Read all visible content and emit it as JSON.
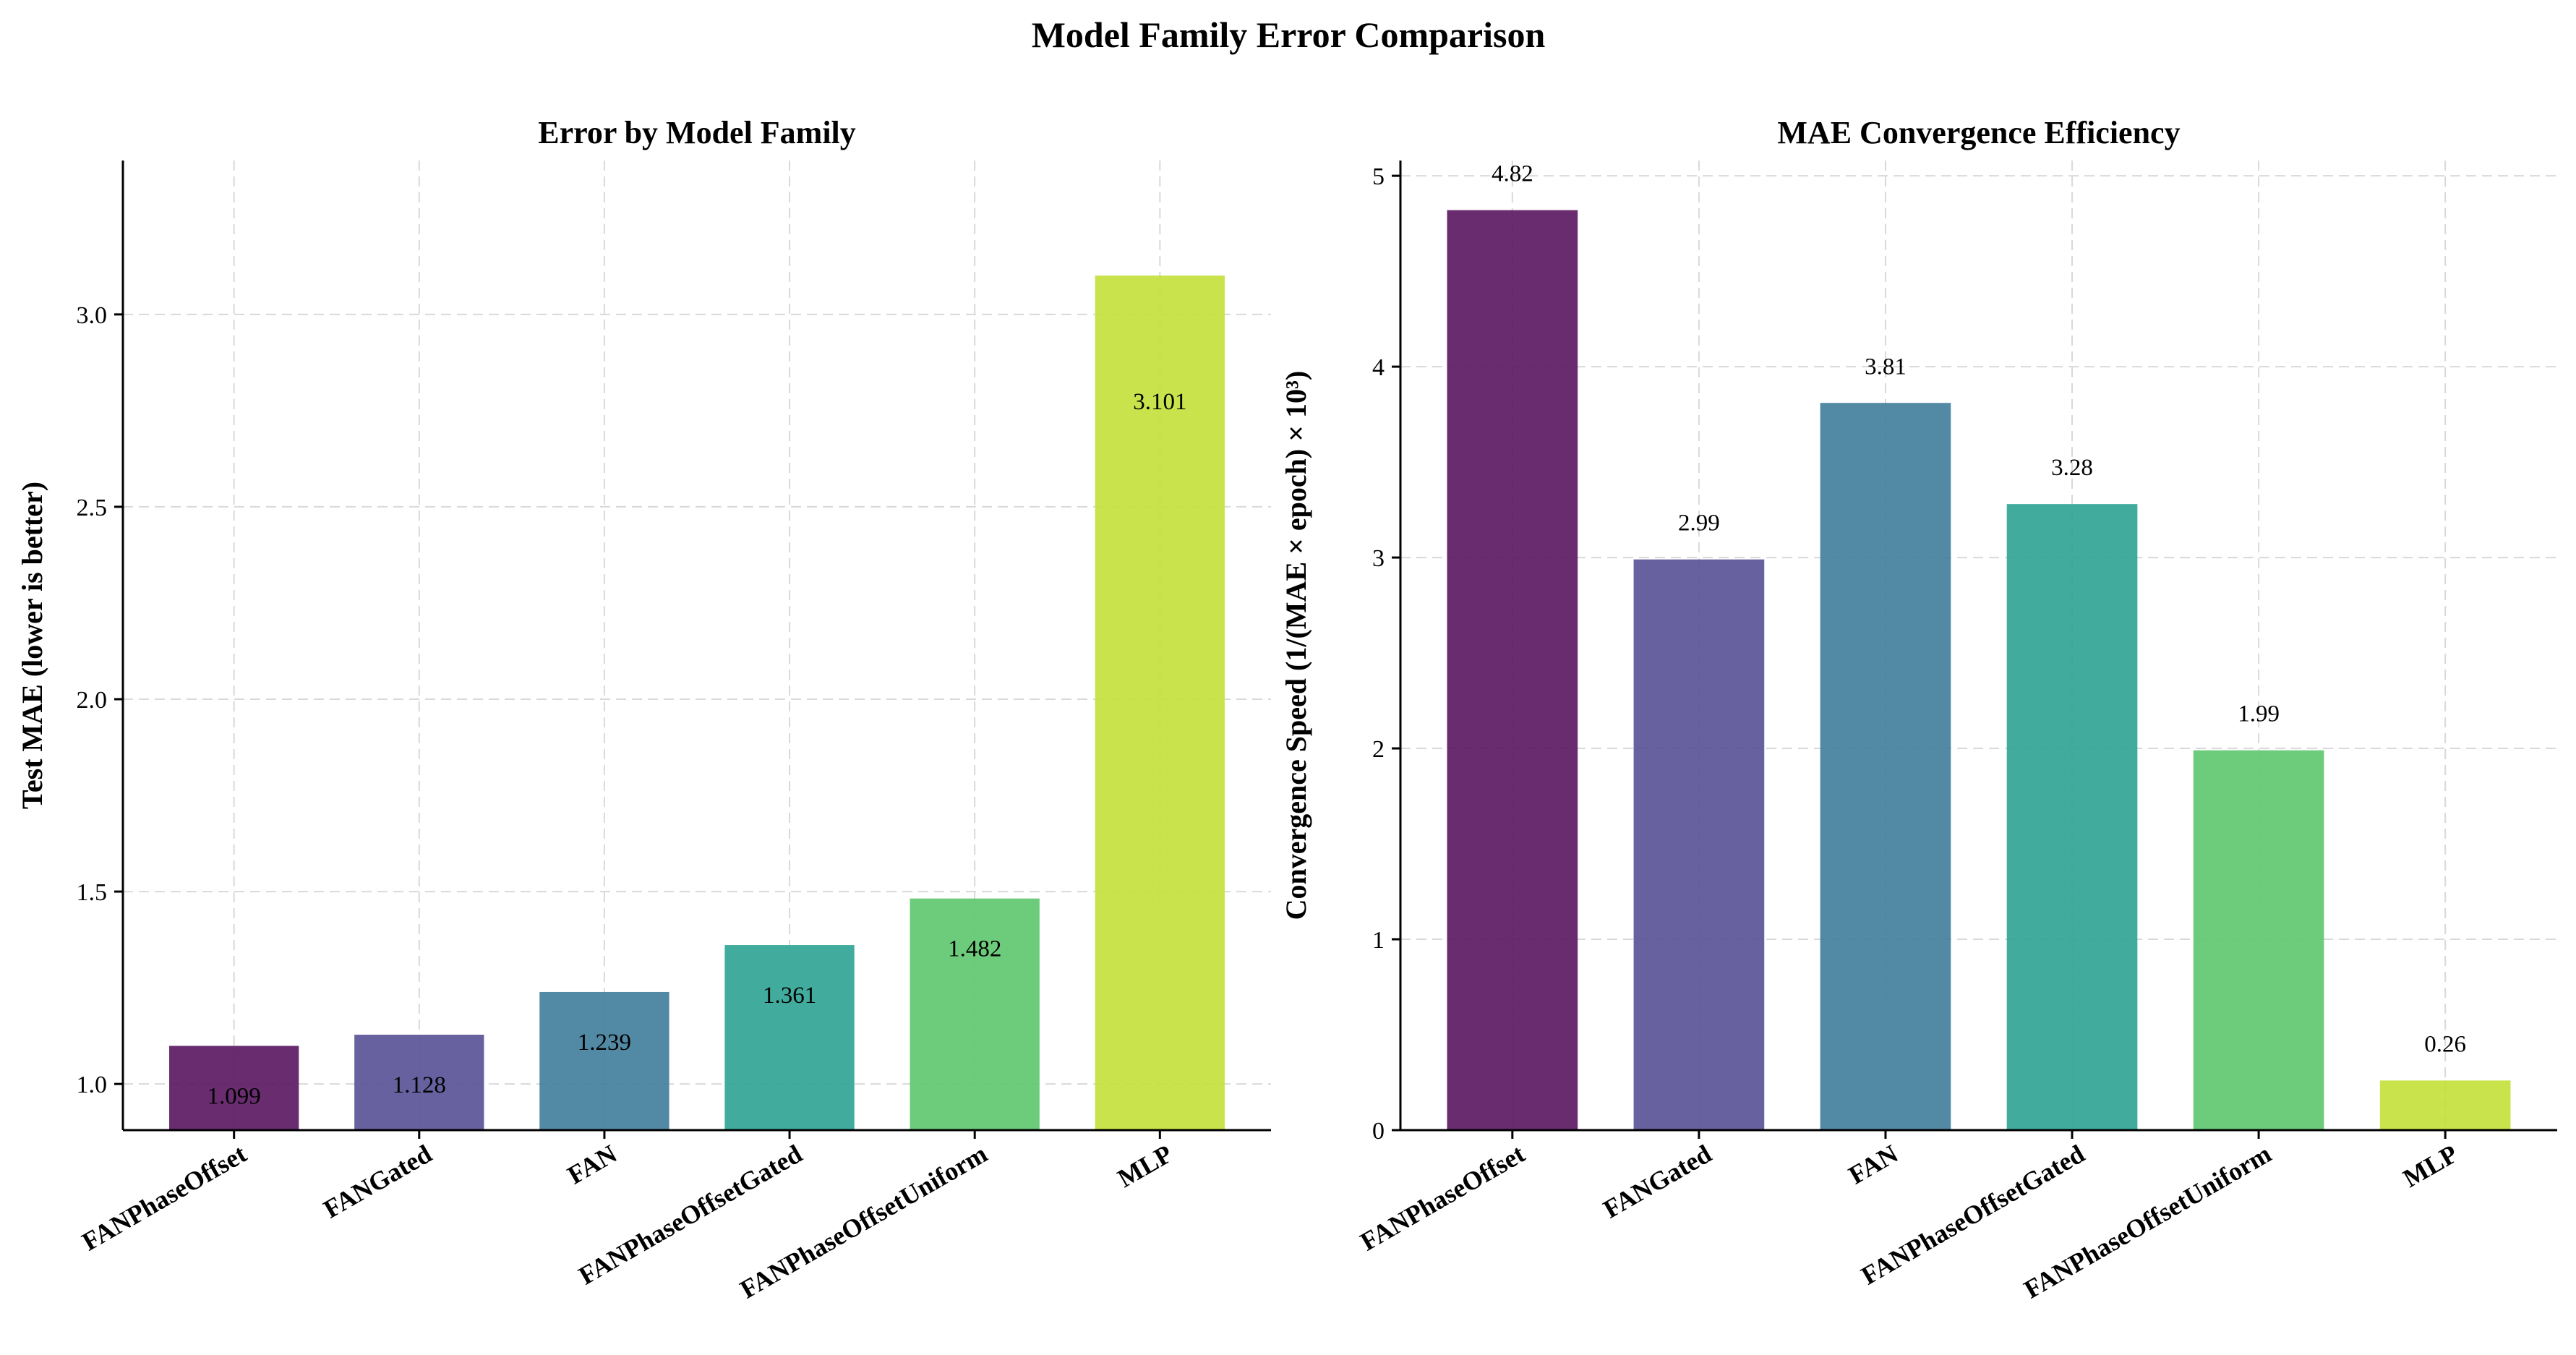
{
  "figure_title": "Model Family Error Comparison",
  "chart_data": [
    {
      "type": "bar",
      "title": "Error by Model Family",
      "xlabel": "",
      "ylabel": "Test MAE (lower is better)",
      "categories": [
        "FANPhaseOffset",
        "FANGated",
        "FAN",
        "FANPhaseOffsetGated",
        "FANPhaseOffsetUniform",
        "MLP"
      ],
      "values": [
        1.099,
        1.128,
        1.239,
        1.361,
        1.482,
        3.101
      ],
      "value_labels": [
        "1.099",
        "1.128",
        "1.239",
        "1.361",
        "1.482",
        "3.101"
      ],
      "label_position": "inside-top",
      "ylim": [
        0.88,
        3.4
      ],
      "yticks": [
        1.0,
        1.5,
        2.0,
        2.5,
        3.0
      ],
      "ytick_labels": [
        "1.0",
        "1.5",
        "2.0",
        "2.5",
        "3.0"
      ],
      "colors": [
        "#5b1a63",
        "#5a5597",
        "#437f9c",
        "#31a596",
        "#60c870",
        "#c3e13c"
      ],
      "grid": true
    },
    {
      "type": "bar",
      "title": "MAE Convergence Efficiency",
      "xlabel": "",
      "ylabel": "Convergence Speed (1/(MAE × epoch) × 10³)",
      "categories": [
        "FANPhaseOffset",
        "FANGated",
        "FAN",
        "FANPhaseOffsetGated",
        "FANPhaseOffsetUniform",
        "MLP"
      ],
      "values": [
        4.82,
        2.99,
        3.81,
        3.28,
        1.99,
        0.26
      ],
      "value_labels": [
        "4.82",
        "2.99",
        "3.81",
        "3.28",
        "1.99",
        "0.26"
      ],
      "label_position": "above",
      "ylim": [
        0,
        5.08
      ],
      "yticks": [
        0,
        1,
        2,
        3,
        4,
        5
      ],
      "ytick_labels": [
        "0",
        "1",
        "2",
        "3",
        "4",
        "5"
      ],
      "colors": [
        "#5b1a63",
        "#5a5597",
        "#437f9c",
        "#31a596",
        "#60c870",
        "#c3e13c"
      ],
      "grid": true
    }
  ]
}
